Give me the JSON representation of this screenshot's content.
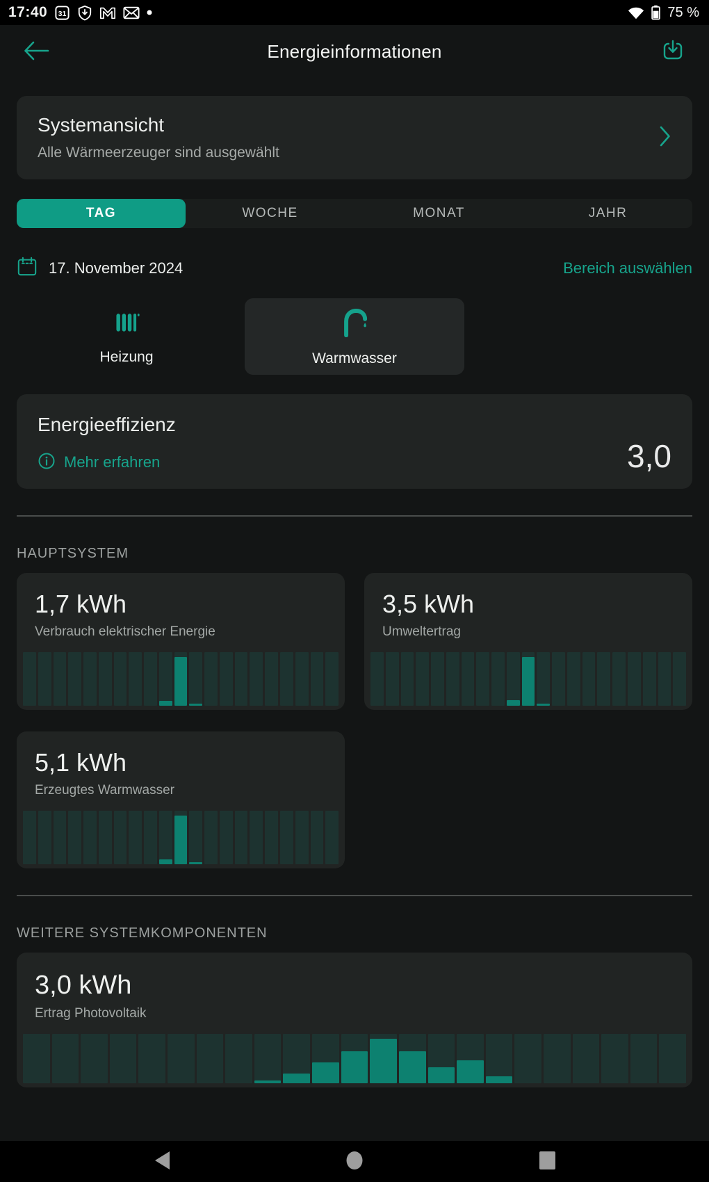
{
  "status_bar": {
    "time": "17:40",
    "battery": "75 %",
    "left_icons": [
      "calendar-31-icon",
      "play-protect-shield-icon",
      "gmail-icon",
      "envelope-icon",
      "notification-dot"
    ],
    "right_icons": [
      "wifi-icon",
      "battery-icon"
    ]
  },
  "header": {
    "title": "Energieinformationen"
  },
  "system_card": {
    "title": "Systemansicht",
    "subtitle": "Alle Wärmeerzeuger sind ausgewählt"
  },
  "tabs": [
    {
      "label": "TAG",
      "selected": true
    },
    {
      "label": "WOCHE",
      "selected": false
    },
    {
      "label": "MONAT",
      "selected": false
    },
    {
      "label": "JAHR",
      "selected": false
    }
  ],
  "date_bar": {
    "date": "17. November 2024",
    "range_link": "Bereich auswählen"
  },
  "filters": [
    {
      "label": "Heizung",
      "icon": "radiator-icon",
      "selected": false
    },
    {
      "label": "Warmwasser",
      "icon": "tap-icon",
      "selected": true
    }
  ],
  "efficiency": {
    "title": "Energieeffizienz",
    "link": "Mehr erfahren",
    "value": "3,0"
  },
  "sections": {
    "main": "HAUPTSYSTEM",
    "other": "WEITERE SYSTEMKOMPONENTEN"
  },
  "colors": {
    "accent": "#17a48c",
    "tab_selected": "#0f9c85",
    "bar_bright": "#0d8170",
    "bar_track": "#1d3330",
    "card_bg": "#212423",
    "page_bg": "#131515",
    "muted_text": "#a3a8a6"
  },
  "chart_data": [
    {
      "type": "bar",
      "title": "Verbrauch elektrischer Energie",
      "total_label": "1,7 kWh",
      "unit": "kWh",
      "x": [
        0,
        1,
        2,
        3,
        4,
        5,
        6,
        7,
        8,
        9,
        10,
        11,
        12,
        13,
        14,
        15,
        16,
        17,
        18,
        19,
        20
      ],
      "values": [
        0,
        0,
        0,
        0,
        0,
        0,
        0,
        0,
        0,
        0.15,
        1.5,
        0.05,
        0,
        0,
        0,
        0,
        0,
        0,
        0,
        0,
        0
      ],
      "ylim": [
        0,
        1.65
      ],
      "axes": "hidden",
      "legend": "none"
    },
    {
      "type": "bar",
      "title": "Umweltertrag",
      "total_label": "3,5 kWh",
      "unit": "kWh",
      "x": [
        0,
        1,
        2,
        3,
        4,
        5,
        6,
        7,
        8,
        9,
        10,
        11,
        12,
        13,
        14,
        15,
        16,
        17,
        18,
        19,
        20
      ],
      "values": [
        0,
        0,
        0,
        0,
        0,
        0,
        0,
        0,
        0,
        0.35,
        3.0,
        0.15,
        0,
        0,
        0,
        0,
        0,
        0,
        0,
        0,
        0
      ],
      "ylim": [
        0,
        3.3
      ],
      "axes": "hidden",
      "legend": "none"
    },
    {
      "type": "bar",
      "title": "Erzeugtes Warmwasser",
      "total_label": "5,1 kWh",
      "unit": "kWh",
      "x": [
        0,
        1,
        2,
        3,
        4,
        5,
        6,
        7,
        8,
        9,
        10,
        11,
        12,
        13,
        14,
        15,
        16,
        17,
        18,
        19,
        20
      ],
      "values": [
        0,
        0,
        0,
        0,
        0,
        0,
        0,
        0,
        0,
        0.45,
        4.55,
        0.1,
        0,
        0,
        0,
        0,
        0,
        0,
        0,
        0,
        0
      ],
      "ylim": [
        0,
        5.0
      ],
      "axes": "hidden",
      "legend": "none"
    },
    {
      "type": "bar",
      "title": "Ertrag Photovoltaik",
      "total_label": "3,0 kWh",
      "unit": "kWh",
      "x": [
        0,
        1,
        2,
        3,
        4,
        5,
        6,
        7,
        8,
        9,
        10,
        11,
        12,
        13,
        14,
        15,
        16,
        17,
        18,
        19,
        20,
        21,
        22
      ],
      "values": [
        0,
        0,
        0,
        0,
        0,
        0,
        0,
        0,
        0.04,
        0.16,
        0.33,
        0.51,
        0.71,
        0.51,
        0.26,
        0.37,
        0.11,
        0,
        0,
        0,
        0,
        0,
        0
      ],
      "ylim": [
        0,
        0.79
      ],
      "axes": "hidden",
      "legend": "none"
    }
  ],
  "nav_bar": {
    "icons": [
      "back-triangle-icon",
      "home-circle-icon",
      "recents-square-icon"
    ]
  }
}
